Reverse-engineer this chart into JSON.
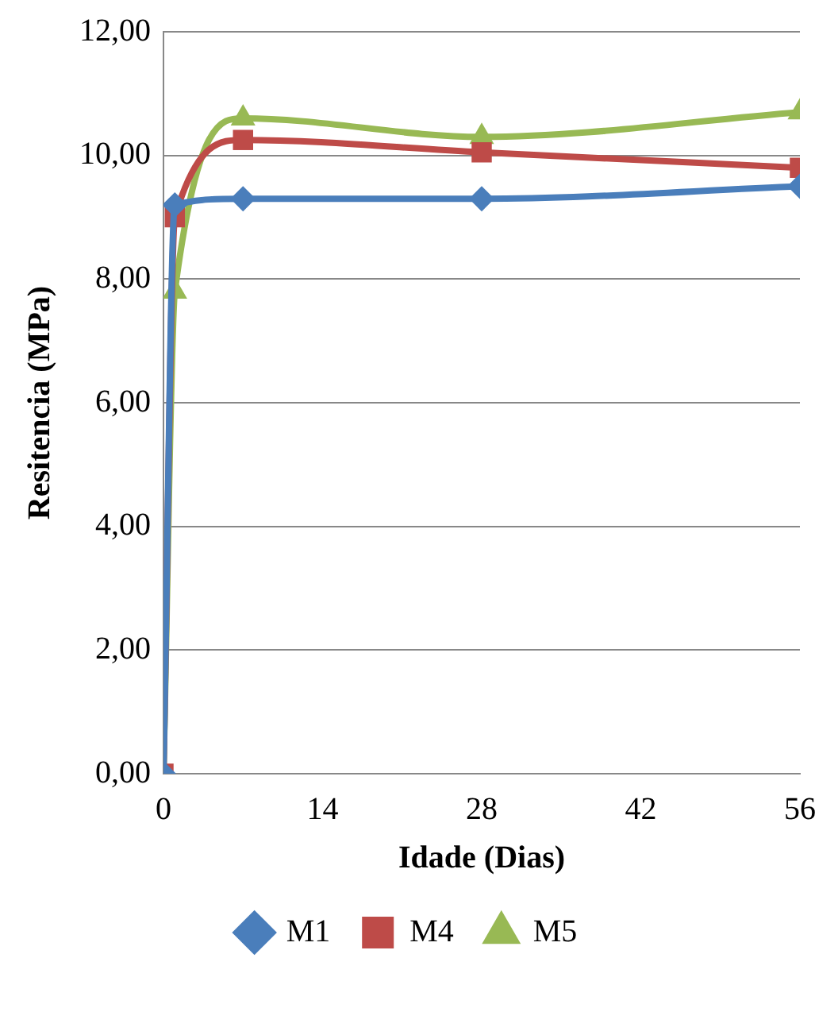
{
  "chart_data": {
    "type": "line",
    "xlabel": "Idade (Dias)",
    "ylabel": "Resitencia (MPa)",
    "xlim": [
      0,
      56
    ],
    "xticks": [
      0,
      14,
      28,
      42,
      56
    ],
    "ylim": [
      0,
      12
    ],
    "yticks": [
      {
        "value": 0,
        "label": "0,00"
      },
      {
        "value": 2,
        "label": "2,00"
      },
      {
        "value": 4,
        "label": "4,00"
      },
      {
        "value": 6,
        "label": "6,00"
      },
      {
        "value": 8,
        "label": "8,00"
      },
      {
        "value": 10,
        "label": "10,00"
      },
      {
        "value": 12,
        "label": "12,00"
      }
    ],
    "grid": "y",
    "legend": "bottom",
    "series": [
      {
        "name": "M1",
        "color": "#4a7ebb",
        "marker": "diamond",
        "x": [
          0,
          1,
          7,
          28,
          56
        ],
        "values": [
          0,
          9.2,
          9.3,
          9.3,
          9.5
        ]
      },
      {
        "name": "M4",
        "color": "#be4b48",
        "marker": "square",
        "x": [
          0,
          1,
          7,
          28,
          56
        ],
        "values": [
          0,
          9.0,
          10.25,
          10.05,
          9.8
        ]
      },
      {
        "name": "M5",
        "color": "#98b954",
        "marker": "triangle",
        "x": [
          0,
          1,
          7,
          28,
          56
        ],
        "values": [
          0,
          7.8,
          10.6,
          10.3,
          10.7
        ]
      }
    ]
  }
}
